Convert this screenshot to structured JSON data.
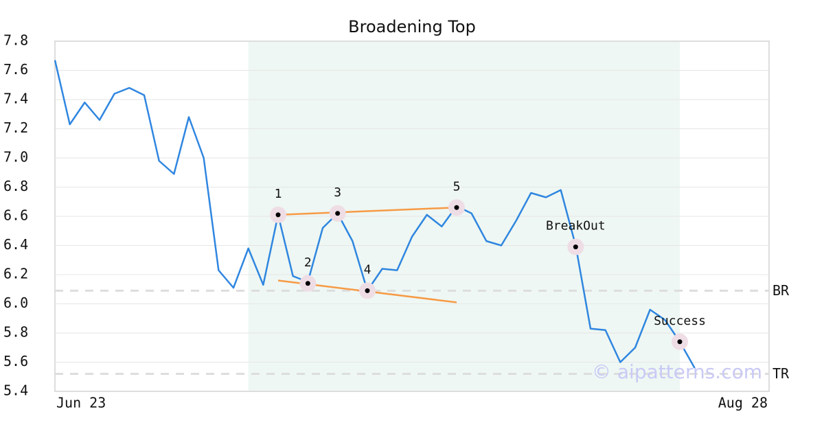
{
  "chart_data": {
    "type": "line",
    "title": "Broadening Top",
    "categories": [
      "Jun 23",
      null,
      null,
      null,
      null,
      null,
      null,
      null,
      null,
      null,
      null,
      null,
      null,
      null,
      null,
      null,
      null,
      null,
      null,
      null,
      null,
      null,
      null,
      null,
      null,
      null,
      null,
      null,
      null,
      null,
      null,
      null,
      null,
      null,
      null,
      null,
      null,
      null,
      null,
      null,
      null,
      null,
      null,
      null,
      null,
      null,
      null,
      null,
      "Aug 28"
    ],
    "values": [
      7.67,
      7.23,
      7.38,
      7.26,
      7.44,
      7.48,
      7.43,
      6.98,
      6.89,
      7.28,
      7.0,
      6.23,
      6.11,
      6.38,
      6.13,
      6.61,
      6.19,
      6.15,
      6.52,
      6.62,
      6.43,
      6.09,
      6.24,
      6.23,
      6.46,
      6.61,
      6.53,
      6.67,
      6.62,
      6.43,
      6.4,
      6.57,
      6.76,
      6.73,
      6.78,
      6.4,
      5.83,
      5.82,
      5.6,
      5.7,
      5.96,
      5.89,
      5.74,
      5.56,
      null,
      null,
      null,
      null,
      null
    ],
    "color": "#2f86e0",
    "ylim": [
      5.4,
      7.8
    ],
    "yticks": [
      5.4,
      5.6,
      5.8,
      {
        "value": 6,
        "label": "6.0"
      },
      6.2,
      6.4,
      6.6,
      6.8,
      {
        "value": 7,
        "label": "7.0"
      },
      7.2,
      7.4,
      7.6,
      7.8
    ],
    "grid": true,
    "highlight": [
      13,
      42
    ],
    "highlight_color": "#eef7f3",
    "trendlines": [
      {
        "color": "#f79a45",
        "from": [
          15,
          6.61
        ],
        "to": [
          27,
          6.66
        ]
      },
      {
        "color": "#f79a45",
        "from": [
          15,
          6.16
        ],
        "to": [
          27,
          6.01
        ]
      }
    ],
    "reference_lines": [
      {
        "label": "BR",
        "value": 6.09
      },
      {
        "label": "TR",
        "value": 5.52
      }
    ],
    "annotations": [
      {
        "label": "1",
        "at": 15,
        "value": 6.61
      },
      {
        "label": "2",
        "at": 17,
        "value": 6.14
      },
      {
        "label": "3",
        "at": 19,
        "value": 6.62
      },
      {
        "label": "4",
        "at": 21,
        "value": 6.09
      },
      {
        "label": "5",
        "at": 27,
        "value": 6.66
      },
      {
        "label": "BreakOut",
        "at": 35,
        "value": 6.39
      },
      {
        "label": "Success",
        "at": 42,
        "value": 5.74
      }
    ],
    "watermark": "© aipatterns.com"
  }
}
